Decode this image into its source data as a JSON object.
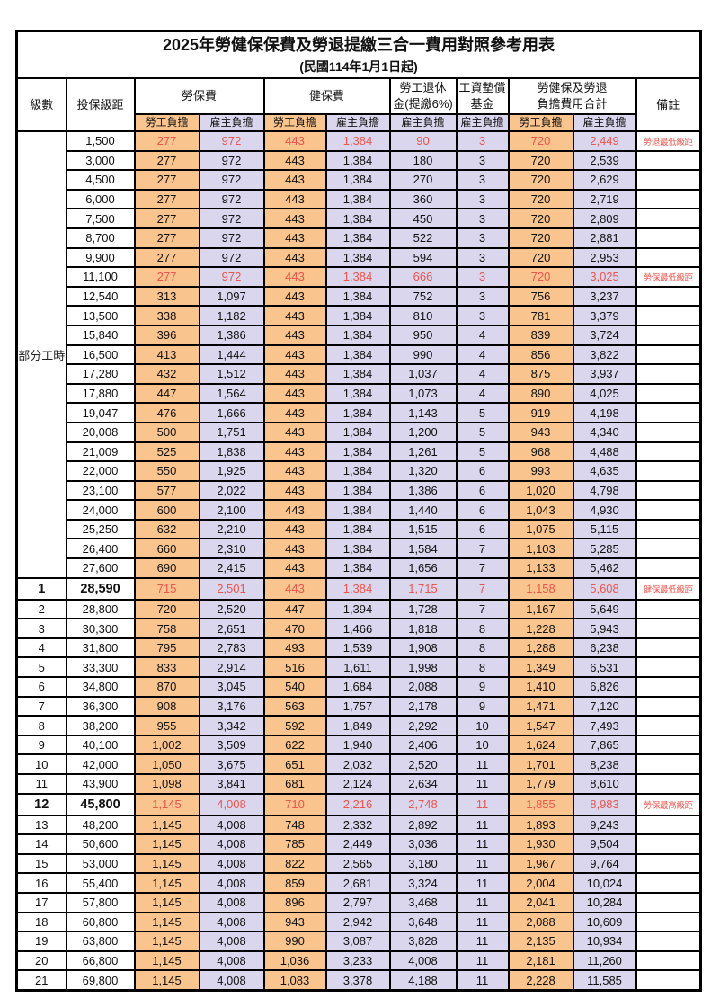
{
  "title": "2025年勞健保保費及勞退提繳三合一費用對照參考用表",
  "subtitle": "(民國114年1月1日起)",
  "colors": {
    "employee_column_bg": "#F9C48E",
    "employer_column_bg": "#DAD6ED",
    "highlight_text": "#EC544C",
    "border": "#000000"
  },
  "header": {
    "level": "級數",
    "bracket": "投保級距",
    "labor_insurance": "勞保費",
    "health_insurance": "健保費",
    "pension_line1": "勞工退休",
    "pension_line2": "金(提繳6%)",
    "wage_fund_line1": "工資墊償",
    "wage_fund_line2": "基金",
    "total_line1": "勞健保及勞退",
    "total_line2": "負擔費用合計",
    "remark": "備註",
    "employee": "勞工負擔",
    "employer": "雇主負擔"
  },
  "part_time_label": "部分工時",
  "rows": [
    {
      "pt": true,
      "level": "",
      "bracket": "1,500",
      "values": [
        "277",
        "972",
        "443",
        "1,384",
        "90",
        "3",
        "720",
        "2,449"
      ],
      "note": "勞退最低級距",
      "red": true,
      "bold": false
    },
    {
      "pt": true,
      "level": "",
      "bracket": "3,000",
      "values": [
        "277",
        "972",
        "443",
        "1,384",
        "180",
        "3",
        "720",
        "2,539"
      ],
      "note": "",
      "red": false,
      "bold": false
    },
    {
      "pt": true,
      "level": "",
      "bracket": "4,500",
      "values": [
        "277",
        "972",
        "443",
        "1,384",
        "270",
        "3",
        "720",
        "2,629"
      ],
      "note": "",
      "red": false,
      "bold": false
    },
    {
      "pt": true,
      "level": "",
      "bracket": "6,000",
      "values": [
        "277",
        "972",
        "443",
        "1,384",
        "360",
        "3",
        "720",
        "2,719"
      ],
      "note": "",
      "red": false,
      "bold": false
    },
    {
      "pt": true,
      "level": "",
      "bracket": "7,500",
      "values": [
        "277",
        "972",
        "443",
        "1,384",
        "450",
        "3",
        "720",
        "2,809"
      ],
      "note": "",
      "red": false,
      "bold": false
    },
    {
      "pt": true,
      "level": "",
      "bracket": "8,700",
      "values": [
        "277",
        "972",
        "443",
        "1,384",
        "522",
        "3",
        "720",
        "2,881"
      ],
      "note": "",
      "red": false,
      "bold": false
    },
    {
      "pt": true,
      "level": "",
      "bracket": "9,900",
      "values": [
        "277",
        "972",
        "443",
        "1,384",
        "594",
        "3",
        "720",
        "2,953"
      ],
      "note": "",
      "red": false,
      "bold": false
    },
    {
      "pt": true,
      "level": "",
      "bracket": "11,100",
      "values": [
        "277",
        "972",
        "443",
        "1,384",
        "666",
        "3",
        "720",
        "3,025"
      ],
      "note": "勞保最低級距",
      "red": true,
      "bold": false
    },
    {
      "pt": true,
      "level": "",
      "bracket": "12,540",
      "values": [
        "313",
        "1,097",
        "443",
        "1,384",
        "752",
        "3",
        "756",
        "3,237"
      ],
      "note": "",
      "red": false,
      "bold": false
    },
    {
      "pt": true,
      "level": "",
      "bracket": "13,500",
      "values": [
        "338",
        "1,182",
        "443",
        "1,384",
        "810",
        "3",
        "781",
        "3,379"
      ],
      "note": "",
      "red": false,
      "bold": false
    },
    {
      "pt": true,
      "level": "",
      "bracket": "15,840",
      "values": [
        "396",
        "1,386",
        "443",
        "1,384",
        "950",
        "4",
        "839",
        "3,724"
      ],
      "note": "",
      "red": false,
      "bold": false
    },
    {
      "pt": true,
      "level": "",
      "bracket": "16,500",
      "values": [
        "413",
        "1,444",
        "443",
        "1,384",
        "990",
        "4",
        "856",
        "3,822"
      ],
      "note": "",
      "red": false,
      "bold": false
    },
    {
      "pt": true,
      "level": "",
      "bracket": "17,280",
      "values": [
        "432",
        "1,512",
        "443",
        "1,384",
        "1,037",
        "4",
        "875",
        "3,937"
      ],
      "note": "",
      "red": false,
      "bold": false
    },
    {
      "pt": true,
      "level": "",
      "bracket": "17,880",
      "values": [
        "447",
        "1,564",
        "443",
        "1,384",
        "1,073",
        "4",
        "890",
        "4,025"
      ],
      "note": "",
      "red": false,
      "bold": false
    },
    {
      "pt": true,
      "level": "",
      "bracket": "19,047",
      "values": [
        "476",
        "1,666",
        "443",
        "1,384",
        "1,143",
        "5",
        "919",
        "4,198"
      ],
      "note": "",
      "red": false,
      "bold": false
    },
    {
      "pt": true,
      "level": "",
      "bracket": "20,008",
      "values": [
        "500",
        "1,751",
        "443",
        "1,384",
        "1,200",
        "5",
        "943",
        "4,340"
      ],
      "note": "",
      "red": false,
      "bold": false
    },
    {
      "pt": true,
      "level": "",
      "bracket": "21,009",
      "values": [
        "525",
        "1,838",
        "443",
        "1,384",
        "1,261",
        "5",
        "968",
        "4,488"
      ],
      "note": "",
      "red": false,
      "bold": false
    },
    {
      "pt": true,
      "level": "",
      "bracket": "22,000",
      "values": [
        "550",
        "1,925",
        "443",
        "1,384",
        "1,320",
        "6",
        "993",
        "4,635"
      ],
      "note": "",
      "red": false,
      "bold": false
    },
    {
      "pt": true,
      "level": "",
      "bracket": "23,100",
      "values": [
        "577",
        "2,022",
        "443",
        "1,384",
        "1,386",
        "6",
        "1,020",
        "4,798"
      ],
      "note": "",
      "red": false,
      "bold": false
    },
    {
      "pt": true,
      "level": "",
      "bracket": "24,000",
      "values": [
        "600",
        "2,100",
        "443",
        "1,384",
        "1,440",
        "6",
        "1,043",
        "4,930"
      ],
      "note": "",
      "red": false,
      "bold": false
    },
    {
      "pt": true,
      "level": "",
      "bracket": "25,250",
      "values": [
        "632",
        "2,210",
        "443",
        "1,384",
        "1,515",
        "6",
        "1,075",
        "5,115"
      ],
      "note": "",
      "red": false,
      "bold": false
    },
    {
      "pt": true,
      "level": "",
      "bracket": "26,400",
      "values": [
        "660",
        "2,310",
        "443",
        "1,384",
        "1,584",
        "7",
        "1,103",
        "5,285"
      ],
      "note": "",
      "red": false,
      "bold": false
    },
    {
      "pt": true,
      "level": "",
      "bracket": "27,600",
      "values": [
        "690",
        "2,415",
        "443",
        "1,384",
        "1,656",
        "7",
        "1,133",
        "5,462"
      ],
      "note": "",
      "red": false,
      "bold": false
    },
    {
      "pt": false,
      "level": "1",
      "bracket": "28,590",
      "values": [
        "715",
        "2,501",
        "443",
        "1,384",
        "1,715",
        "7",
        "1,158",
        "5,608"
      ],
      "note": "健保最低級距",
      "red": true,
      "bold": true
    },
    {
      "pt": false,
      "level": "2",
      "bracket": "28,800",
      "values": [
        "720",
        "2,520",
        "447",
        "1,394",
        "1,728",
        "7",
        "1,167",
        "5,649"
      ],
      "note": "",
      "red": false,
      "bold": false
    },
    {
      "pt": false,
      "level": "3",
      "bracket": "30,300",
      "values": [
        "758",
        "2,651",
        "470",
        "1,466",
        "1,818",
        "8",
        "1,228",
        "5,943"
      ],
      "note": "",
      "red": false,
      "bold": false
    },
    {
      "pt": false,
      "level": "4",
      "bracket": "31,800",
      "values": [
        "795",
        "2,783",
        "493",
        "1,539",
        "1,908",
        "8",
        "1,288",
        "6,238"
      ],
      "note": "",
      "red": false,
      "bold": false
    },
    {
      "pt": false,
      "level": "5",
      "bracket": "33,300",
      "values": [
        "833",
        "2,914",
        "516",
        "1,611",
        "1,998",
        "8",
        "1,349",
        "6,531"
      ],
      "note": "",
      "red": false,
      "bold": false
    },
    {
      "pt": false,
      "level": "6",
      "bracket": "34,800",
      "values": [
        "870",
        "3,045",
        "540",
        "1,684",
        "2,088",
        "9",
        "1,410",
        "6,826"
      ],
      "note": "",
      "red": false,
      "bold": false
    },
    {
      "pt": false,
      "level": "7",
      "bracket": "36,300",
      "values": [
        "908",
        "3,176",
        "563",
        "1,757",
        "2,178",
        "9",
        "1,471",
        "7,120"
      ],
      "note": "",
      "red": false,
      "bold": false
    },
    {
      "pt": false,
      "level": "8",
      "bracket": "38,200",
      "values": [
        "955",
        "3,342",
        "592",
        "1,849",
        "2,292",
        "10",
        "1,547",
        "7,493"
      ],
      "note": "",
      "red": false,
      "bold": false
    },
    {
      "pt": false,
      "level": "9",
      "bracket": "40,100",
      "values": [
        "1,002",
        "3,509",
        "622",
        "1,940",
        "2,406",
        "10",
        "1,624",
        "7,865"
      ],
      "note": "",
      "red": false,
      "bold": false
    },
    {
      "pt": false,
      "level": "10",
      "bracket": "42,000",
      "values": [
        "1,050",
        "3,675",
        "651",
        "2,032",
        "2,520",
        "11",
        "1,701",
        "8,238"
      ],
      "note": "",
      "red": false,
      "bold": false
    },
    {
      "pt": false,
      "level": "11",
      "bracket": "43,900",
      "values": [
        "1,098",
        "3,841",
        "681",
        "2,124",
        "2,634",
        "11",
        "1,779",
        "8,610"
      ],
      "note": "",
      "red": false,
      "bold": false
    },
    {
      "pt": false,
      "level": "12",
      "bracket": "45,800",
      "values": [
        "1,145",
        "4,008",
        "710",
        "2,216",
        "2,748",
        "11",
        "1,855",
        "8,983"
      ],
      "note": "勞保最高級距",
      "red": true,
      "bold": true
    },
    {
      "pt": false,
      "level": "13",
      "bracket": "48,200",
      "values": [
        "1,145",
        "4,008",
        "748",
        "2,332",
        "2,892",
        "11",
        "1,893",
        "9,243"
      ],
      "note": "",
      "red": false,
      "bold": false
    },
    {
      "pt": false,
      "level": "14",
      "bracket": "50,600",
      "values": [
        "1,145",
        "4,008",
        "785",
        "2,449",
        "3,036",
        "11",
        "1,930",
        "9,504"
      ],
      "note": "",
      "red": false,
      "bold": false
    },
    {
      "pt": false,
      "level": "15",
      "bracket": "53,000",
      "values": [
        "1,145",
        "4,008",
        "822",
        "2,565",
        "3,180",
        "11",
        "1,967",
        "9,764"
      ],
      "note": "",
      "red": false,
      "bold": false
    },
    {
      "pt": false,
      "level": "16",
      "bracket": "55,400",
      "values": [
        "1,145",
        "4,008",
        "859",
        "2,681",
        "3,324",
        "11",
        "2,004",
        "10,024"
      ],
      "note": "",
      "red": false,
      "bold": false
    },
    {
      "pt": false,
      "level": "17",
      "bracket": "57,800",
      "values": [
        "1,145",
        "4,008",
        "896",
        "2,797",
        "3,468",
        "11",
        "2,041",
        "10,284"
      ],
      "note": "",
      "red": false,
      "bold": false
    },
    {
      "pt": false,
      "level": "18",
      "bracket": "60,800",
      "values": [
        "1,145",
        "4,008",
        "943",
        "2,942",
        "3,648",
        "11",
        "2,088",
        "10,609"
      ],
      "note": "",
      "red": false,
      "bold": false
    },
    {
      "pt": false,
      "level": "19",
      "bracket": "63,800",
      "values": [
        "1,145",
        "4,008",
        "990",
        "3,087",
        "3,828",
        "11",
        "2,135",
        "10,934"
      ],
      "note": "",
      "red": false,
      "bold": false
    },
    {
      "pt": false,
      "level": "20",
      "bracket": "66,800",
      "values": [
        "1,145",
        "4,008",
        "1,036",
        "3,233",
        "4,008",
        "11",
        "2,181",
        "11,260"
      ],
      "note": "",
      "red": false,
      "bold": false
    },
    {
      "pt": false,
      "level": "21",
      "bracket": "69,800",
      "values": [
        "1,145",
        "4,008",
        "1,083",
        "3,378",
        "4,188",
        "11",
        "2,228",
        "11,585"
      ],
      "note": "",
      "red": false,
      "bold": false
    }
  ]
}
